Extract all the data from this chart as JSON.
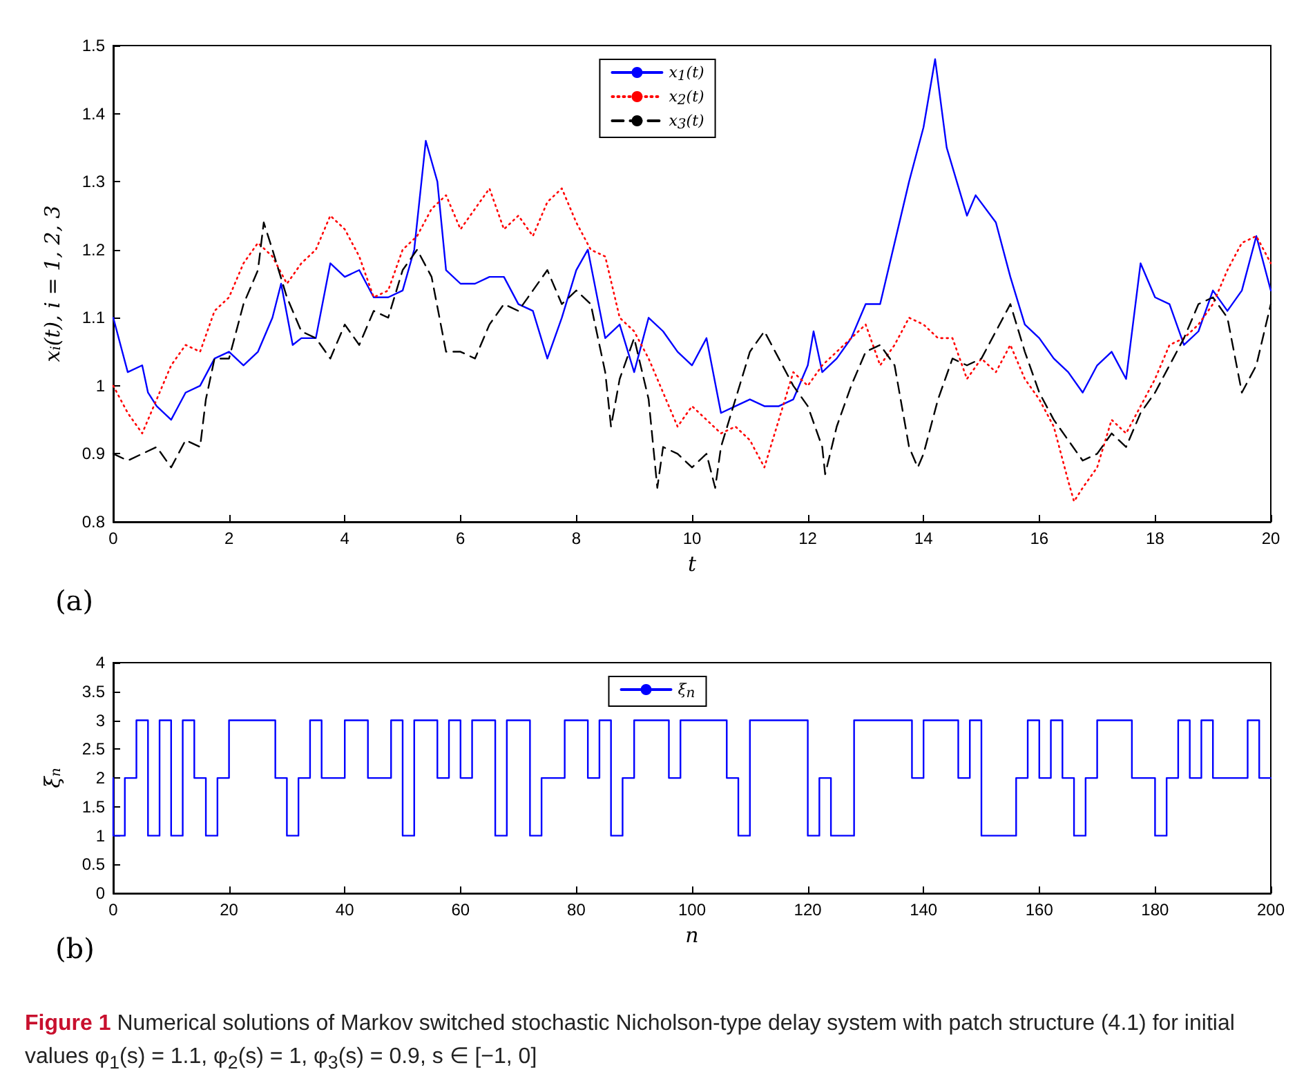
{
  "chart_data": [
    {
      "type": "line",
      "xlabel": "t",
      "ylabel": "x$_{i}$(t), i = 1, 2, 3",
      "xlim": [
        0,
        20
      ],
      "ylim": [
        0.8,
        1.5
      ],
      "xticks": [
        0,
        2,
        4,
        6,
        8,
        10,
        12,
        14,
        16,
        18,
        20
      ],
      "yticks": [
        0.8,
        0.9,
        1,
        1.1,
        1.2,
        1.3,
        1.4,
        1.5
      ],
      "grid": false,
      "legend": "top",
      "marker": "none",
      "annotations": [
        "(a)"
      ],
      "series": [
        {
          "name": "x$_{1}$(t)",
          "color": "#0000ff",
          "line_style": "solid",
          "x": [
            0,
            0.25,
            0.5,
            0.6,
            0.75,
            1,
            1.25,
            1.5,
            1.75,
            2,
            2.25,
            2.5,
            2.75,
            2.9,
            3.1,
            3.25,
            3.5,
            3.75,
            4,
            4.25,
            4.5,
            4.75,
            5,
            5.2,
            5.4,
            5.6,
            5.75,
            6,
            6.25,
            6.5,
            6.75,
            7,
            7.25,
            7.5,
            7.75,
            8,
            8.2,
            8.5,
            8.75,
            9,
            9.25,
            9.5,
            9.75,
            10,
            10.25,
            10.5,
            10.75,
            11,
            11.25,
            11.5,
            11.75,
            12,
            12.1,
            12.25,
            12.5,
            12.75,
            13,
            13.25,
            13.5,
            13.75,
            14,
            14.2,
            14.4,
            14.75,
            14.9,
            15.25,
            15.5,
            15.75,
            16,
            16.25,
            16.5,
            16.75,
            17,
            17.25,
            17.5,
            17.75,
            18,
            18.25,
            18.5,
            18.75,
            19,
            19.25,
            19.5,
            19.75,
            20
          ],
          "values": [
            1.1,
            1.02,
            1.03,
            0.99,
            0.97,
            0.95,
            0.99,
            1,
            1.04,
            1.05,
            1.03,
            1.05,
            1.1,
            1.15,
            1.06,
            1.07,
            1.07,
            1.18,
            1.16,
            1.17,
            1.13,
            1.13,
            1.14,
            1.2,
            1.36,
            1.3,
            1.17,
            1.15,
            1.15,
            1.16,
            1.16,
            1.12,
            1.11,
            1.04,
            1.1,
            1.17,
            1.2,
            1.07,
            1.09,
            1.02,
            1.1,
            1.08,
            1.05,
            1.03,
            1.07,
            0.96,
            0.97,
            0.98,
            0.97,
            0.97,
            0.98,
            1.03,
            1.08,
            1.02,
            1.04,
            1.07,
            1.12,
            1.12,
            1.21,
            1.3,
            1.38,
            1.48,
            1.35,
            1.25,
            1.28,
            1.24,
            1.16,
            1.09,
            1.07,
            1.04,
            1.02,
            0.99,
            1.03,
            1.05,
            1.01,
            1.18,
            1.13,
            1.12,
            1.06,
            1.08,
            1.14,
            1.11,
            1.14,
            1.22,
            1.14
          ]
        },
        {
          "name": "x$_{2}$(t)",
          "color": "#ff0000",
          "line_style": "dotted",
          "x": [
            0,
            0.25,
            0.5,
            0.75,
            1,
            1.25,
            1.5,
            1.75,
            2,
            2.25,
            2.5,
            2.75,
            3,
            3.25,
            3.5,
            3.75,
            4,
            4.25,
            4.5,
            4.75,
            5,
            5.25,
            5.5,
            5.75,
            6,
            6.25,
            6.5,
            6.75,
            7,
            7.25,
            7.5,
            7.75,
            8,
            8.25,
            8.5,
            8.75,
            9,
            9.25,
            9.5,
            9.75,
            10,
            10.25,
            10.5,
            10.75,
            11,
            11.25,
            11.5,
            11.75,
            12,
            12.25,
            12.5,
            12.75,
            13,
            13.25,
            13.5,
            13.75,
            14,
            14.25,
            14.5,
            14.75,
            15,
            15.25,
            15.5,
            15.75,
            16,
            16.25,
            16.5,
            16.6,
            16.75,
            17,
            17.25,
            17.5,
            17.75,
            18,
            18.25,
            18.5,
            18.75,
            19,
            19.25,
            19.5,
            19.75,
            20
          ],
          "values": [
            1,
            0.96,
            0.93,
            0.98,
            1.03,
            1.06,
            1.05,
            1.11,
            1.13,
            1.18,
            1.21,
            1.19,
            1.15,
            1.18,
            1.2,
            1.25,
            1.23,
            1.19,
            1.13,
            1.14,
            1.2,
            1.22,
            1.26,
            1.28,
            1.23,
            1.26,
            1.29,
            1.23,
            1.25,
            1.22,
            1.27,
            1.29,
            1.24,
            1.2,
            1.19,
            1.1,
            1.08,
            1.04,
            0.99,
            0.94,
            0.97,
            0.95,
            0.93,
            0.94,
            0.92,
            0.88,
            0.95,
            1.02,
            1,
            1.03,
            1.05,
            1.07,
            1.09,
            1.03,
            1.06,
            1.1,
            1.09,
            1.07,
            1.07,
            1.01,
            1.04,
            1.02,
            1.06,
            1.01,
            0.98,
            0.94,
            0.86,
            0.83,
            0.85,
            0.88,
            0.95,
            0.93,
            0.97,
            1.01,
            1.06,
            1.07,
            1.09,
            1.12,
            1.17,
            1.21,
            1.22,
            1.18
          ]
        },
        {
          "name": "x$_{3}$(t)",
          "color": "#000000",
          "line_style": "dashed",
          "x": [
            0,
            0.25,
            0.5,
            0.75,
            1,
            1.25,
            1.5,
            1.6,
            1.75,
            2,
            2.25,
            2.5,
            2.6,
            2.75,
            3,
            3.25,
            3.5,
            3.75,
            4,
            4.25,
            4.5,
            4.75,
            5,
            5.25,
            5.5,
            5.75,
            6,
            6.25,
            6.5,
            6.75,
            7,
            7.25,
            7.5,
            7.75,
            8,
            8.25,
            8.5,
            8.6,
            8.75,
            9,
            9.25,
            9.4,
            9.5,
            9.75,
            10,
            10.25,
            10.4,
            10.5,
            10.75,
            11,
            11.25,
            11.5,
            11.75,
            12,
            12.25,
            12.3,
            12.5,
            12.75,
            13,
            13.25,
            13.5,
            13.75,
            13.9,
            14,
            14.25,
            14.5,
            14.75,
            15,
            15.25,
            15.5,
            15.75,
            16,
            16.25,
            16.5,
            16.75,
            17,
            17.25,
            17.5,
            17.75,
            18,
            18.25,
            18.5,
            18.75,
            19,
            19.25,
            19.5,
            19.75,
            20
          ],
          "values": [
            0.9,
            0.89,
            0.9,
            0.91,
            0.88,
            0.92,
            0.91,
            0.98,
            1.04,
            1.04,
            1.12,
            1.17,
            1.24,
            1.2,
            1.13,
            1.08,
            1.07,
            1.04,
            1.09,
            1.06,
            1.11,
            1.1,
            1.17,
            1.2,
            1.16,
            1.05,
            1.05,
            1.04,
            1.09,
            1.12,
            1.11,
            1.14,
            1.17,
            1.12,
            1.14,
            1.12,
            1.02,
            0.94,
            1.01,
            1.07,
            0.98,
            0.85,
            0.91,
            0.9,
            0.88,
            0.9,
            0.85,
            0.91,
            0.98,
            1.05,
            1.08,
            1.04,
            1,
            0.97,
            0.91,
            0.87,
            0.94,
            1,
            1.05,
            1.06,
            1.03,
            0.91,
            0.88,
            0.9,
            0.98,
            1.04,
            1.03,
            1.04,
            1.08,
            1.12,
            1.05,
            0.99,
            0.95,
            0.92,
            0.89,
            0.9,
            0.93,
            0.91,
            0.96,
            0.99,
            1.03,
            1.07,
            1.12,
            1.13,
            1.1,
            0.99,
            1.03,
            1.12
          ]
        }
      ]
    },
    {
      "type": "step",
      "xlabel": "n",
      "ylabel": "ξ$_{n}$",
      "xlim": [
        0,
        200
      ],
      "ylim": [
        0,
        4
      ],
      "xticks": [
        0,
        20,
        40,
        60,
        80,
        100,
        120,
        140,
        160,
        180,
        200
      ],
      "yticks": [
        0,
        0.5,
        1,
        1.5,
        2,
        2.5,
        3,
        3.5,
        4
      ],
      "grid": false,
      "legend": "top",
      "marker": "none",
      "annotations": [
        "(b)",
        "Figure 1",
        "Numerical solutions of Markov switched stochastic Nicholson-type delay system with patch structure (4.1) for initial values φ$_{1}$(s) = 1.1, φ$_{2}$(s) = 1, φ$_{3}$(s) = 0.9, s ∈ [−1, 0]"
      ],
      "series": [
        {
          "name": "ξ$_{n}$",
          "color": "#0000ff",
          "line_style": "solid",
          "x": [
            0,
            0,
            2,
            4,
            6,
            8,
            10,
            12,
            14,
            16,
            18,
            20,
            28,
            30,
            32,
            34,
            36,
            40,
            44,
            48,
            50,
            52,
            56,
            58,
            60,
            62,
            66,
            68,
            72,
            74,
            78,
            82,
            84,
            86,
            88,
            90,
            96,
            98,
            106,
            108,
            110,
            120,
            122,
            124,
            128,
            138,
            140,
            146,
            148,
            150,
            156,
            158,
            160,
            162,
            164,
            166,
            168,
            170,
            176,
            180,
            182,
            184,
            186,
            188,
            190,
            196,
            198,
            200
          ],
          "values": [
            2,
            1,
            2,
            3,
            1,
            3,
            1,
            3,
            2,
            1,
            2,
            3,
            2,
            1,
            2,
            3,
            2,
            3,
            2,
            3,
            1,
            3,
            2,
            3,
            2,
            3,
            1,
            3,
            1,
            2,
            3,
            2,
            3,
            1,
            2,
            3,
            2,
            3,
            2,
            1,
            3,
            1,
            2,
            1,
            3,
            2,
            3,
            2,
            3,
            1,
            2,
            3,
            2,
            3,
            2,
            1,
            2,
            3,
            2,
            1,
            2,
            3,
            2,
            3,
            2,
            3,
            2,
            2
          ]
        }
      ]
    }
  ]
}
